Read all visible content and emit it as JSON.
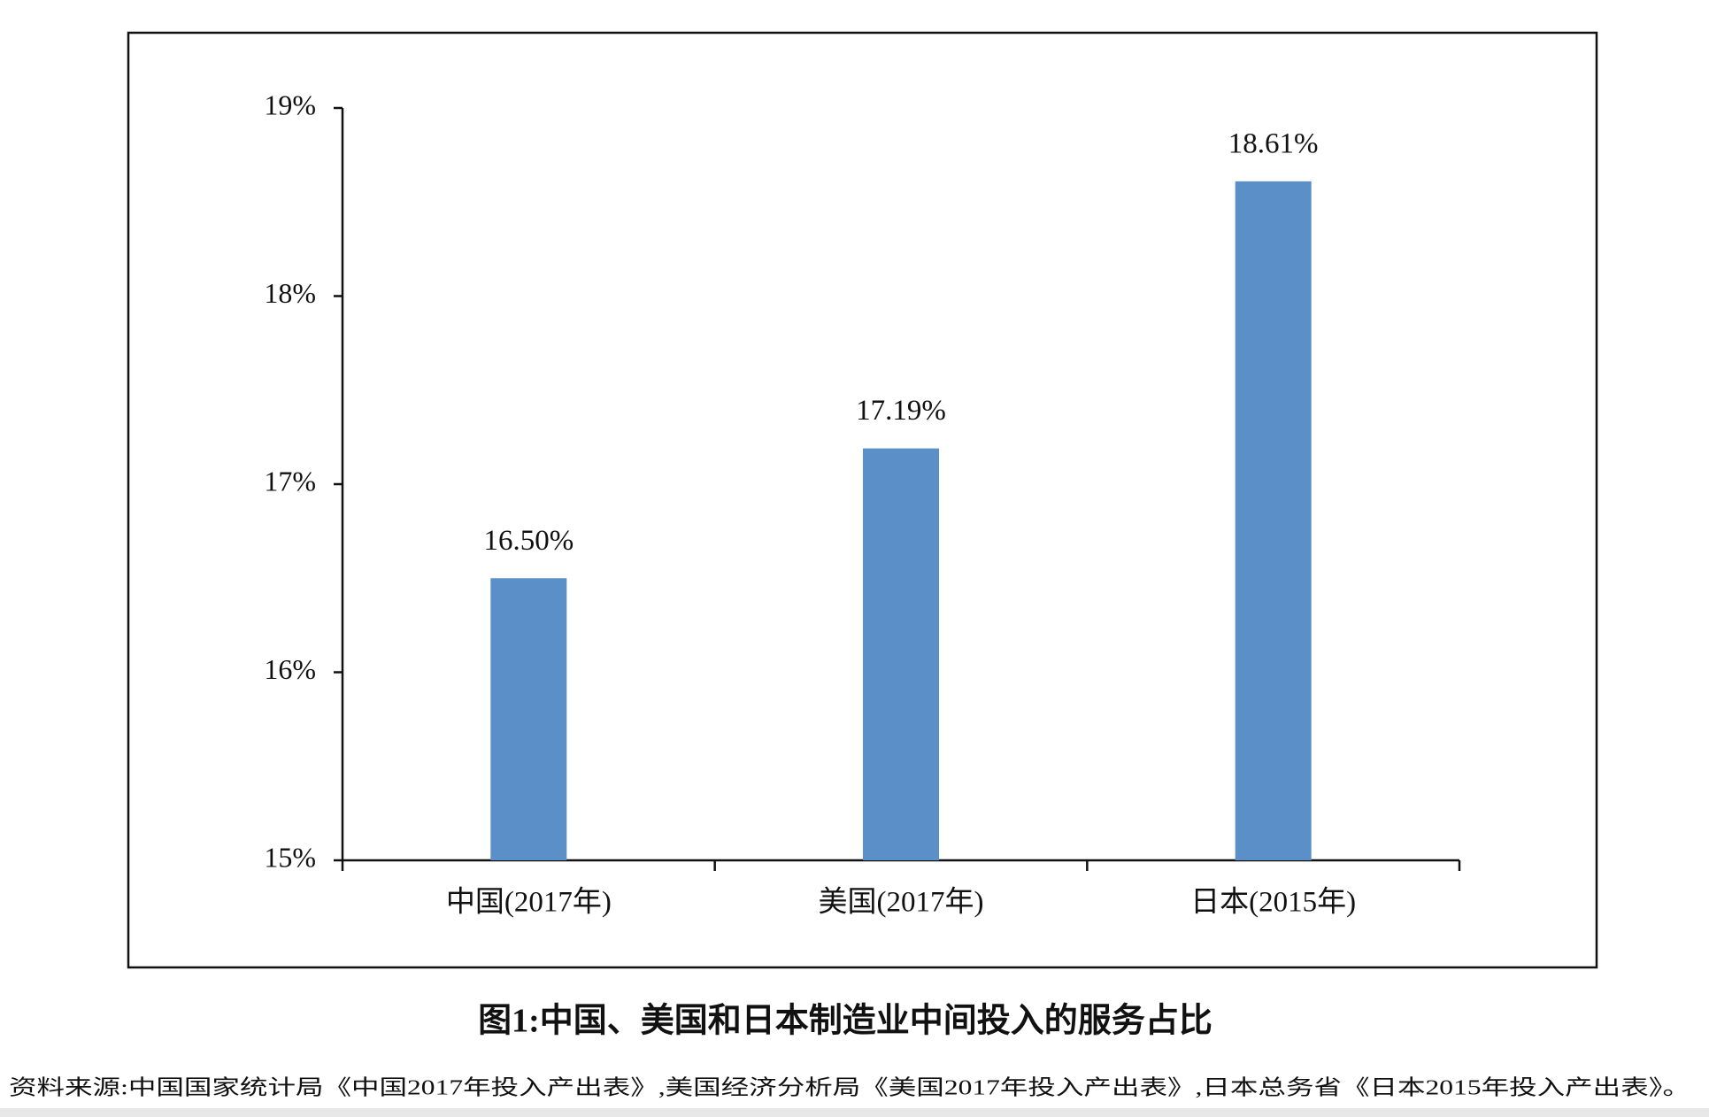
{
  "chart_data": {
    "type": "bar",
    "title": "图1:中国、美国和日本制造业中间投入的服务占比",
    "source": "资料来源:中国国家统计局《中国2017年投入产出表》,美国经济分析局《美国2017年投入产出表》,日本总务省《日本2015年投入产出表》。",
    "categories": [
      "中国(2017年)",
      "美国(2017年)",
      "日本(2015年)"
    ],
    "values": [
      16.5,
      17.19,
      18.61
    ],
    "value_labels": [
      "16.50%",
      "17.19%",
      "18.61%"
    ],
    "color": "#5b8fc8",
    "ylim": [
      15,
      19
    ],
    "yticks": [
      {
        "value": 15,
        "label": "15%"
      },
      {
        "value": 16,
        "label": "16%"
      },
      {
        "value": 17,
        "label": "17%"
      },
      {
        "value": 18,
        "label": "18%"
      },
      {
        "value": 19,
        "label": "19%"
      }
    ]
  }
}
